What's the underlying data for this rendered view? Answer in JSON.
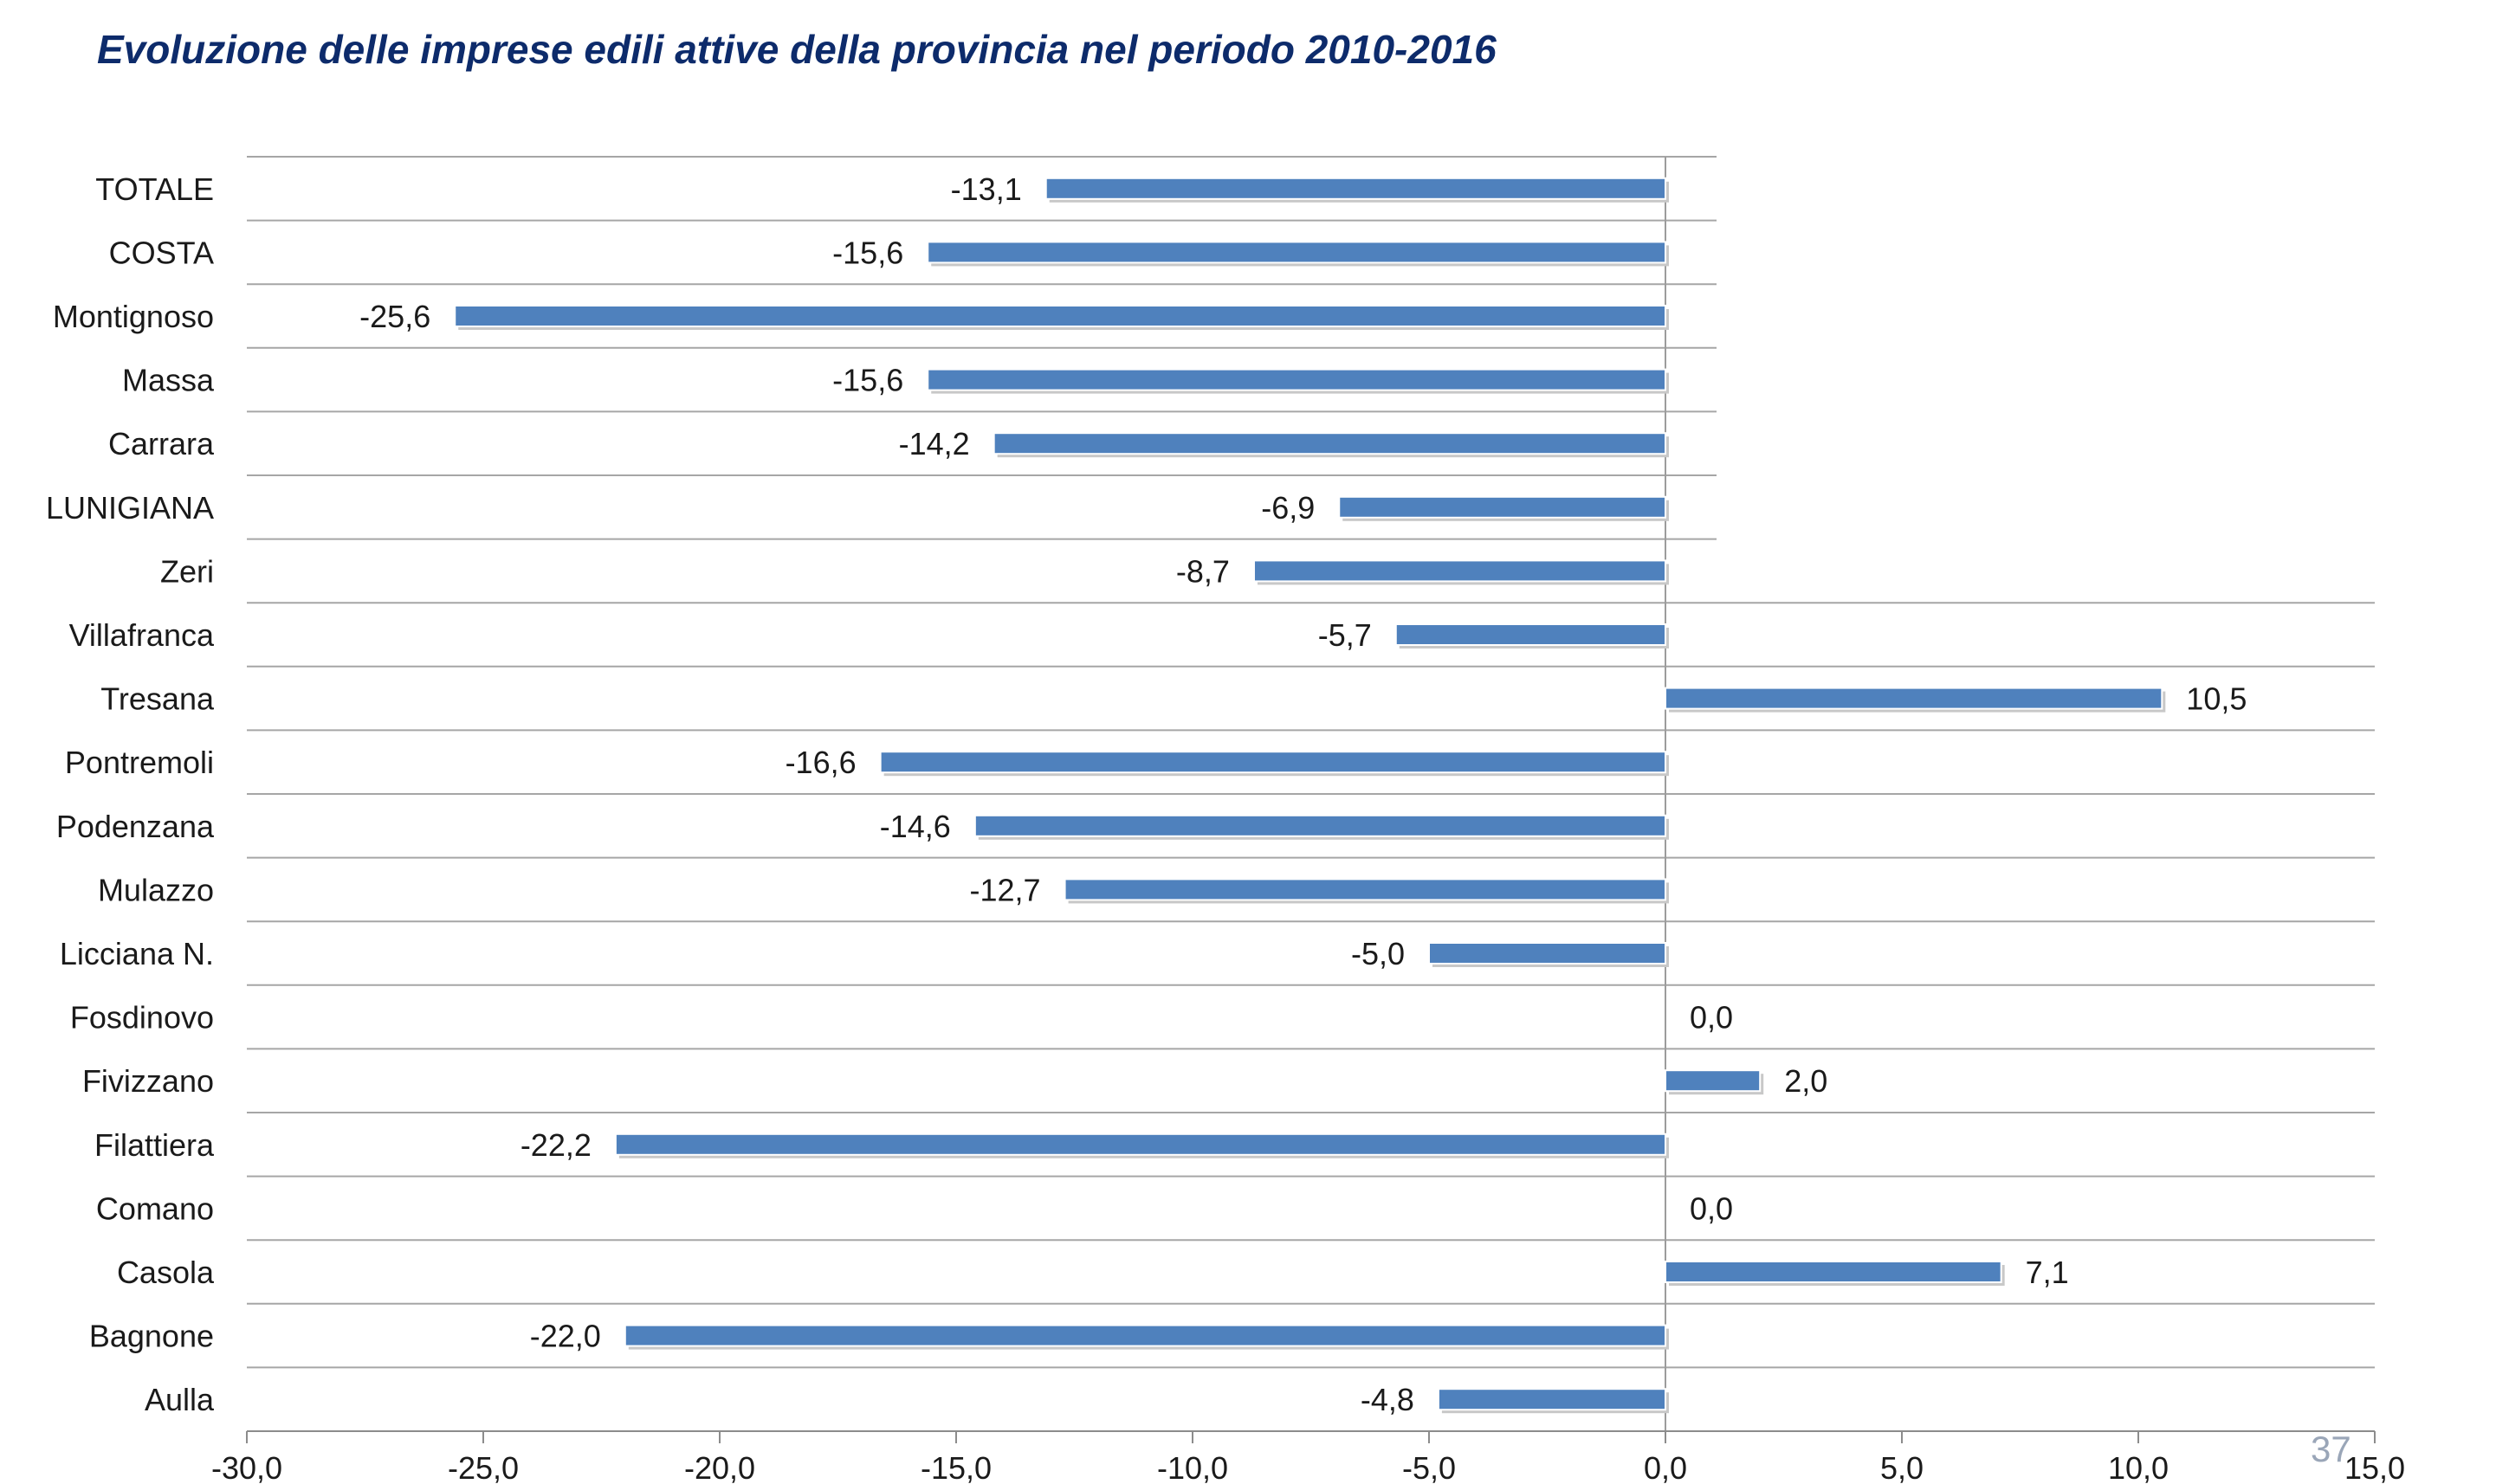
{
  "title": "Evoluzione delle imprese edili attive della provincia nel periodo 2010-2016",
  "page_number": "37",
  "chart_data": {
    "type": "bar",
    "orientation": "horizontal",
    "categories": [
      "TOTALE",
      "COSTA",
      "Montignoso",
      "Massa",
      "Carrara",
      "LUNIGIANA",
      "Zeri",
      "Villafranca",
      "Tresana",
      "Pontremoli",
      "Podenzana",
      "Mulazzo",
      "Licciana N.",
      "Fosdinovo",
      "Fivizzano",
      "Filattiera",
      "Comano",
      "Casola",
      "Bagnone",
      "Aulla"
    ],
    "values": [
      -13.1,
      -15.6,
      -25.6,
      -15.6,
      -14.2,
      -6.9,
      -8.7,
      -5.7,
      10.5,
      -16.6,
      -14.6,
      -12.7,
      -5.0,
      0.0,
      2.0,
      -22.2,
      0.0,
      7.1,
      -22.0,
      -4.8
    ],
    "data_labels": [
      "-13,1",
      "-15,6",
      "-25,6",
      "-15,6",
      "-14,2",
      "-6,9",
      "-8,7",
      "-5,7",
      "10,5",
      "-16,6",
      "-14,6",
      "-12,7",
      "-5,0",
      "0,0",
      "2,0",
      "-22,2",
      "0,0",
      "7,1",
      "-22,0",
      "-4,8"
    ],
    "x_ticks": [
      -30,
      -25,
      -20,
      -15,
      -10,
      -5,
      0,
      5,
      10,
      15
    ],
    "x_tick_labels": [
      "-30,0",
      "-25,0",
      "-20,0",
      "-15,0",
      "-10,0",
      "-5,0",
      "0,0",
      "5,0",
      "10,0",
      "15,0"
    ],
    "xlim": [
      -30,
      15
    ],
    "grid": "horizontal",
    "legend": "none",
    "bar_color": "#4f81bd"
  }
}
